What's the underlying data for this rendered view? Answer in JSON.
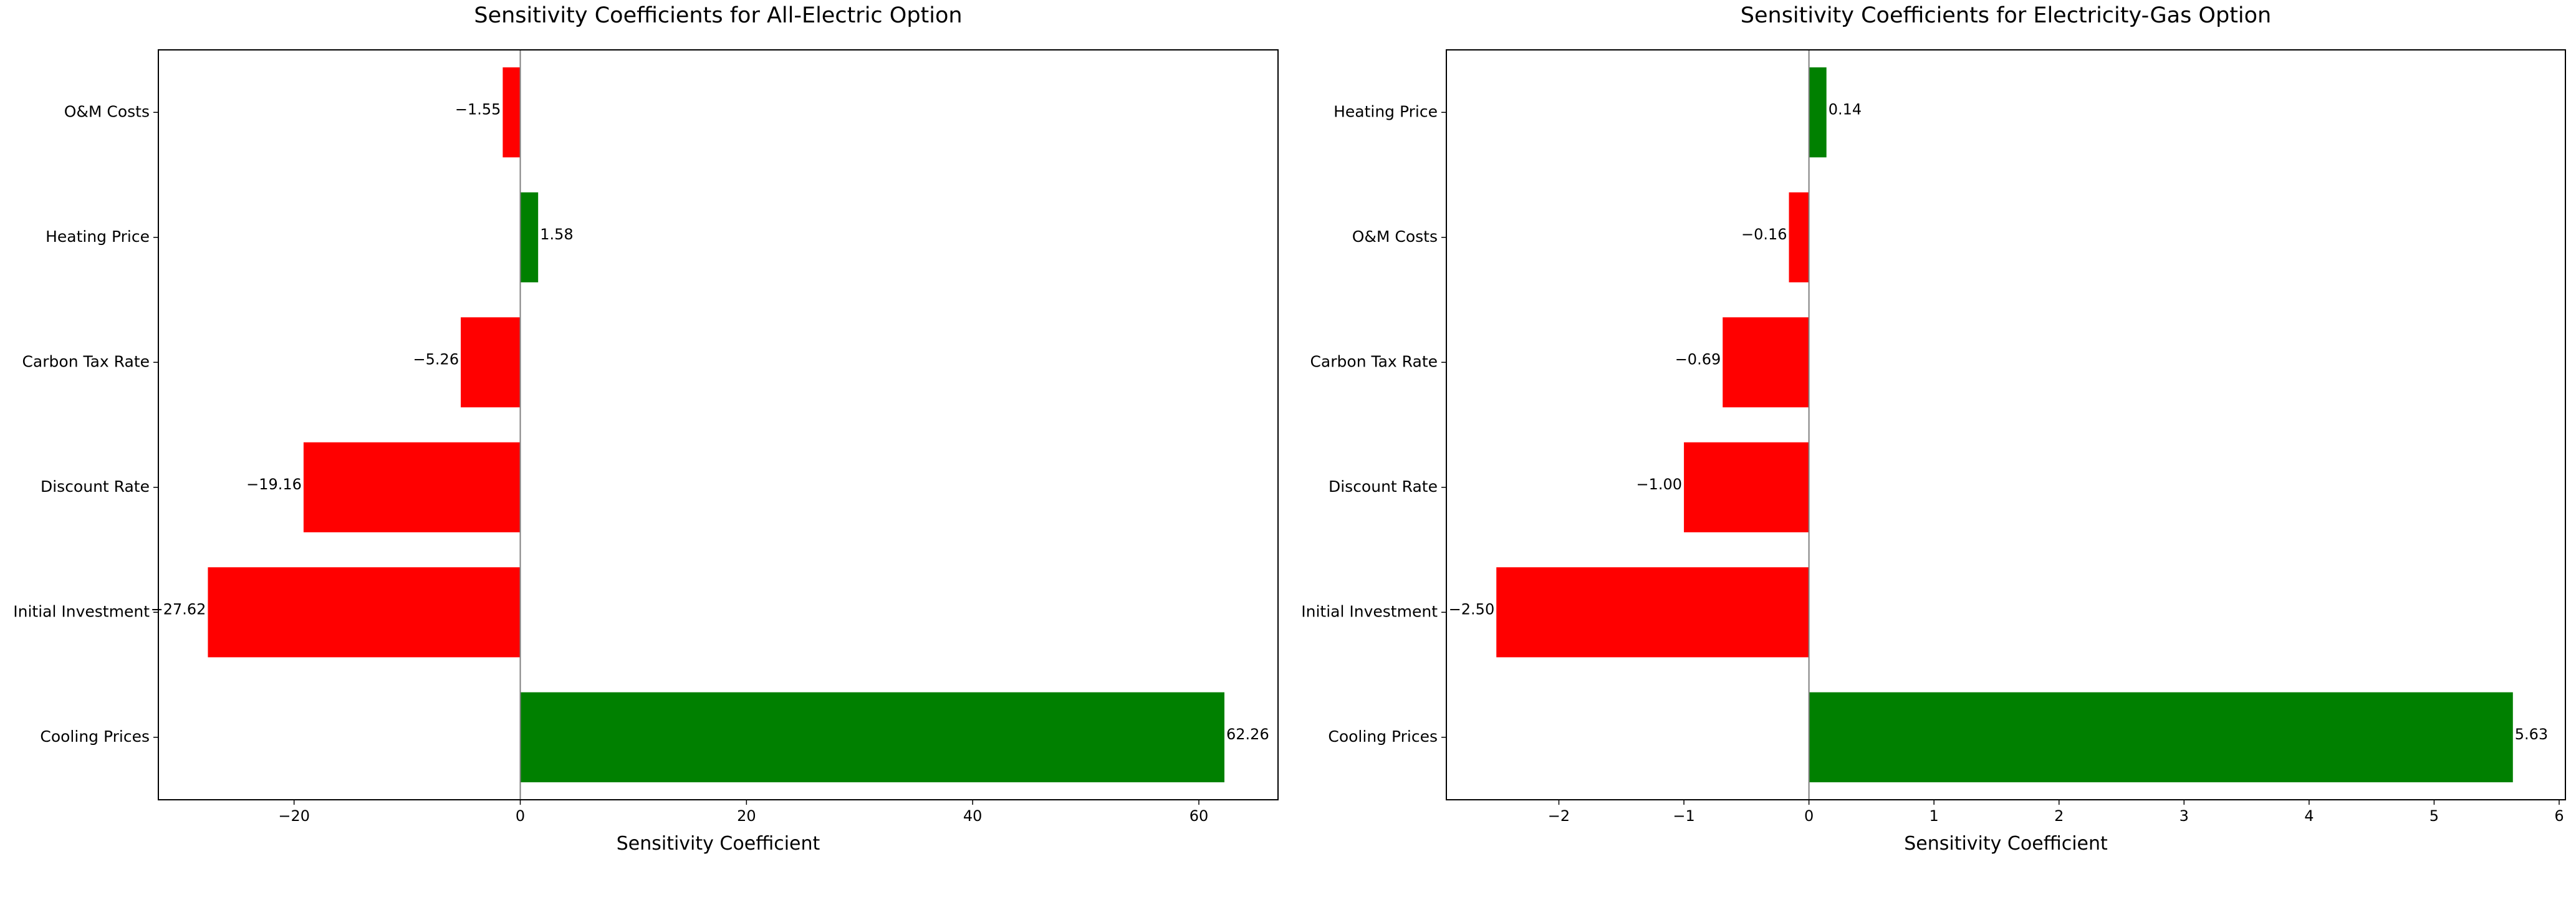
{
  "chart_data": [
    {
      "type": "bar",
      "orientation": "horizontal",
      "title": "Sensitivity Coefficients for All-Electric Option",
      "xlabel": "Sensitivity Coefficient",
      "ylabel": "",
      "categories": [
        "Cooling Prices",
        "Initial Investment",
        "Discount Rate",
        "Carbon Tax Rate",
        "Heating Price",
        "O&M Costs"
      ],
      "values": [
        62.26,
        -27.62,
        -19.16,
        -5.26,
        1.58,
        -1.55
      ],
      "value_labels": [
        "62.26",
        "−27.62",
        "−19.16",
        "−5.26",
        "1.58",
        "−1.55"
      ],
      "xlim": [
        -32,
        67
      ],
      "xticks": [
        -20,
        0,
        20,
        40,
        60
      ],
      "xtick_labels": [
        "−20",
        "0",
        "20",
        "40",
        "60"
      ],
      "colors": {
        "positive": "#008000",
        "negative": "#ff0000",
        "zero_line": "#808080"
      },
      "grid": false,
      "legend": "none"
    },
    {
      "type": "bar",
      "orientation": "horizontal",
      "title": "Sensitivity Coefficients for Electricity-Gas Option",
      "xlabel": "Sensitivity Coefficient",
      "ylabel": "",
      "categories": [
        "Cooling Prices",
        "Initial Investment",
        "Discount Rate",
        "Carbon Tax Rate",
        "O&M Costs",
        "Heating Price"
      ],
      "values": [
        5.63,
        -2.5,
        -1.0,
        -0.69,
        -0.16,
        0.14
      ],
      "value_labels": [
        "5.63",
        "−2.50",
        "−1.00",
        "−0.69",
        "−0.16",
        "0.14"
      ],
      "xlim": [
        -2.9,
        6.05
      ],
      "xticks": [
        -2,
        -1,
        0,
        1,
        2,
        3,
        4,
        5,
        6
      ],
      "xtick_labels": [
        "−2",
        "−1",
        "0",
        "1",
        "2",
        "3",
        "4",
        "5",
        "6"
      ],
      "colors": {
        "positive": "#008000",
        "negative": "#ff0000",
        "zero_line": "#808080"
      },
      "grid": false,
      "legend": "none"
    }
  ]
}
